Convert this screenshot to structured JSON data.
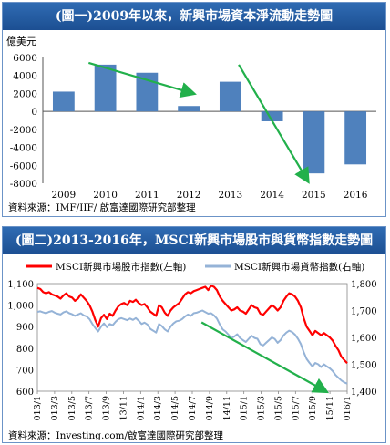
{
  "chart1": {
    "title": "(圖一)2009年以來，新興市場資本淨流動走勢圖",
    "unit_label": "億美元",
    "source": "資料來源：IMF/IIF/ 啟富達國際研究部整理",
    "bar_color": "#4f81bd",
    "arrow_color": "#22b04b"
  },
  "chart2": {
    "title": "(圖二)2013-2016年，MSCI新興市場股市與貨幣指數走勢圖",
    "source": "資料來源：Investing.com/啟富達國際研究部整理",
    "legend_left": "MSCI新興市場股市指數(左軸)",
    "legend_right": "MSCI新興市場貨幣指數(右軸)",
    "colors": {
      "equity": "#ff0000",
      "currency": "#95b3d7",
      "arrow": "#22b04b"
    }
  },
  "chart_data": [
    {
      "type": "bar",
      "categories": [
        "2009",
        "2010",
        "2011",
        "2012",
        "2013",
        "2014",
        "2015",
        "2016"
      ],
      "values": [
        2200,
        5200,
        4300,
        600,
        3300,
        -1100,
        -6900,
        -5900
      ],
      "ylabel": "億美元",
      "ylim": [
        -8000,
        6000
      ],
      "yticks": [
        "6000",
        "4000",
        "2000",
        "0",
        "-2000",
        "-4000",
        "-6000",
        "-8000"
      ],
      "grid": false
    },
    {
      "type": "line",
      "x_ticks": [
        "2013/1",
        "2013/3",
        "2013/5",
        "2013/7",
        "2013/9",
        "2013/11",
        "2014/1",
        "2014/3",
        "2014/5",
        "2014/7",
        "2014/9",
        "2014/11",
        "2015/1",
        "2015/3",
        "2015/5",
        "2015/7",
        "2015/9",
        "2015/11",
        "2016/1"
      ],
      "y_left": {
        "ticks": [
          "600",
          "700",
          "800",
          "900",
          "1,000",
          "1,100"
        ],
        "ylim": [
          600,
          1100
        ]
      },
      "y_right": {
        "ticks": [
          "1,400",
          "1,500",
          "1,600",
          "1,700",
          "1,800"
        ],
        "ylim": [
          1400,
          1800
        ]
      },
      "legend_placement": "top",
      "series": [
        {
          "name": "MSCI新興市場股市指數(左軸)",
          "axis": "left",
          "values": [
            1080,
            1075,
            1060,
            1055,
            1060,
            1050,
            1045,
            1040,
            1030,
            1045,
            1055,
            1040,
            1035,
            1020,
            1030,
            1050,
            1035,
            1020,
            1000,
            970,
            930,
            900,
            940,
            955,
            935,
            960,
            950,
            975,
            995,
            1005,
            1010,
            1000,
            1020,
            1015,
            1025,
            1010,
            1000,
            1005,
            990,
            970,
            960,
            950,
            1000,
            990,
            965,
            950,
            975,
            990,
            1000,
            1010,
            1030,
            1050,
            1060,
            1055,
            1065,
            1070,
            1075,
            1080,
            1085,
            1070,
            1090,
            1085,
            1070,
            1040,
            1020,
            1005,
            990,
            975,
            980,
            990,
            975,
            970,
            960,
            980,
            1000,
            990,
            985,
            960,
            955,
            970,
            985,
            1000,
            990,
            975,
            990,
            1020,
            1040,
            1055,
            1050,
            1040,
            1020,
            990,
            940,
            900,
            880,
            860,
            880,
            870,
            860,
            870,
            860,
            850,
            835,
            810,
            790,
            760,
            745,
            730
          ]
        },
        {
          "name": "MSCI新興市場貨幣指數(右軸)",
          "axis": "right",
          "values": [
            1695,
            1697,
            1693,
            1690,
            1695,
            1698,
            1692,
            1688,
            1685,
            1693,
            1697,
            1690,
            1686,
            1680,
            1685,
            1690,
            1682,
            1678,
            1668,
            1650,
            1635,
            1622,
            1640,
            1652,
            1638,
            1650,
            1645,
            1658,
            1668,
            1672,
            1668,
            1664,
            1670,
            1665,
            1672,
            1662,
            1650,
            1655,
            1648,
            1632,
            1625,
            1618,
            1650,
            1642,
            1630,
            1622,
            1640,
            1652,
            1660,
            1662,
            1668,
            1678,
            1685,
            1680,
            1690,
            1692,
            1696,
            1700,
            1694,
            1688,
            1690,
            1682,
            1670,
            1648,
            1630,
            1622,
            1610,
            1598,
            1603,
            1612,
            1598,
            1590,
            1583,
            1595,
            1606,
            1598,
            1595,
            1575,
            1570,
            1580,
            1590,
            1600,
            1594,
            1580,
            1590,
            1607,
            1618,
            1625,
            1620,
            1610,
            1595,
            1575,
            1545,
            1520,
            1505,
            1492,
            1505,
            1500,
            1490,
            1500,
            1492,
            1485,
            1475,
            1460,
            1450,
            1440,
            1433,
            1428
          ]
        }
      ]
    }
  ]
}
